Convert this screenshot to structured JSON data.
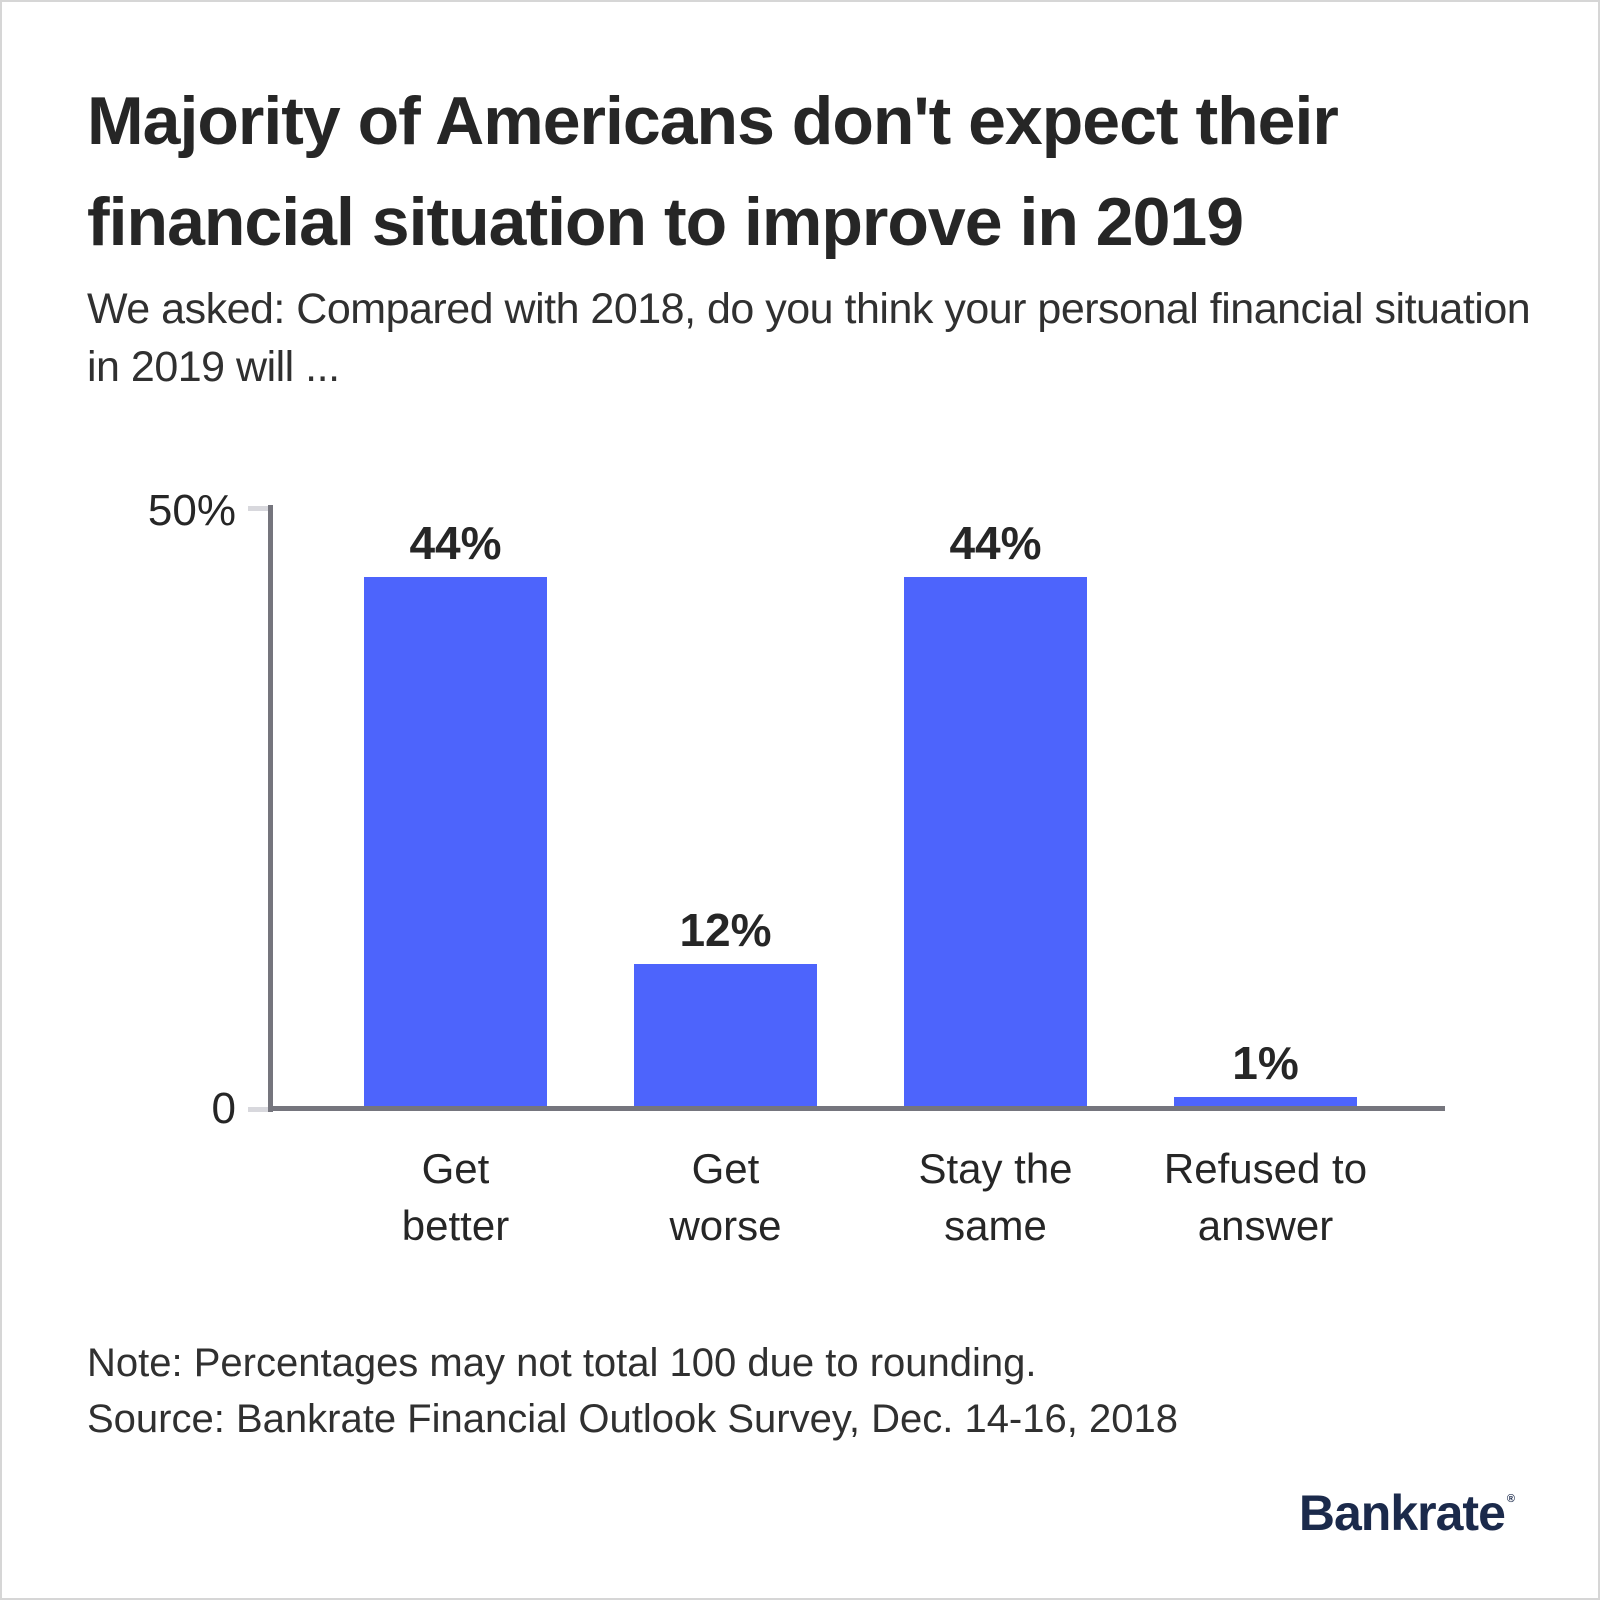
{
  "header": {
    "title_lines": [
      "Majority of Americans don't expect their",
      "financial situation to improve in 2019"
    ],
    "subtitle_lines": [
      "We asked: Compared with 2018, do you think your personal financial situation",
      "in 2019 will ..."
    ]
  },
  "chart_data": {
    "type": "bar",
    "title": "Majority of Americans don't expect their financial situation to improve in 2019",
    "categories": [
      "Get better",
      "Get worse",
      "Stay the same",
      "Refused to answer"
    ],
    "category_lines": [
      [
        "Get",
        "better"
      ],
      [
        "Get",
        "worse"
      ],
      [
        "Stay the",
        "same"
      ],
      [
        "Refused to",
        "answer"
      ]
    ],
    "values": [
      44,
      12,
      44,
      1
    ],
    "value_labels": [
      "44%",
      "12%",
      "44%",
      "1%"
    ],
    "yticks": [
      "50%",
      "0"
    ],
    "ylim": [
      0,
      50
    ],
    "xlabel": "",
    "ylabel": "",
    "grid": false,
    "legend": false,
    "bar_color": "#4d64fc"
  },
  "footer": {
    "note": "Note: Percentages may not total 100 due to rounding.",
    "source": "Source: Bankrate Financial Outlook Survey, Dec. 14-16, 2018",
    "brand": "Bankrate",
    "brand_mark": "®"
  },
  "colors": {
    "bar": "#4d64fc",
    "axis": "#75757d",
    "tick": "#d8d8dd",
    "brand_navy": "#1b2a4b",
    "text_dark": "#262626",
    "frame_border": "#d6d6d6"
  }
}
